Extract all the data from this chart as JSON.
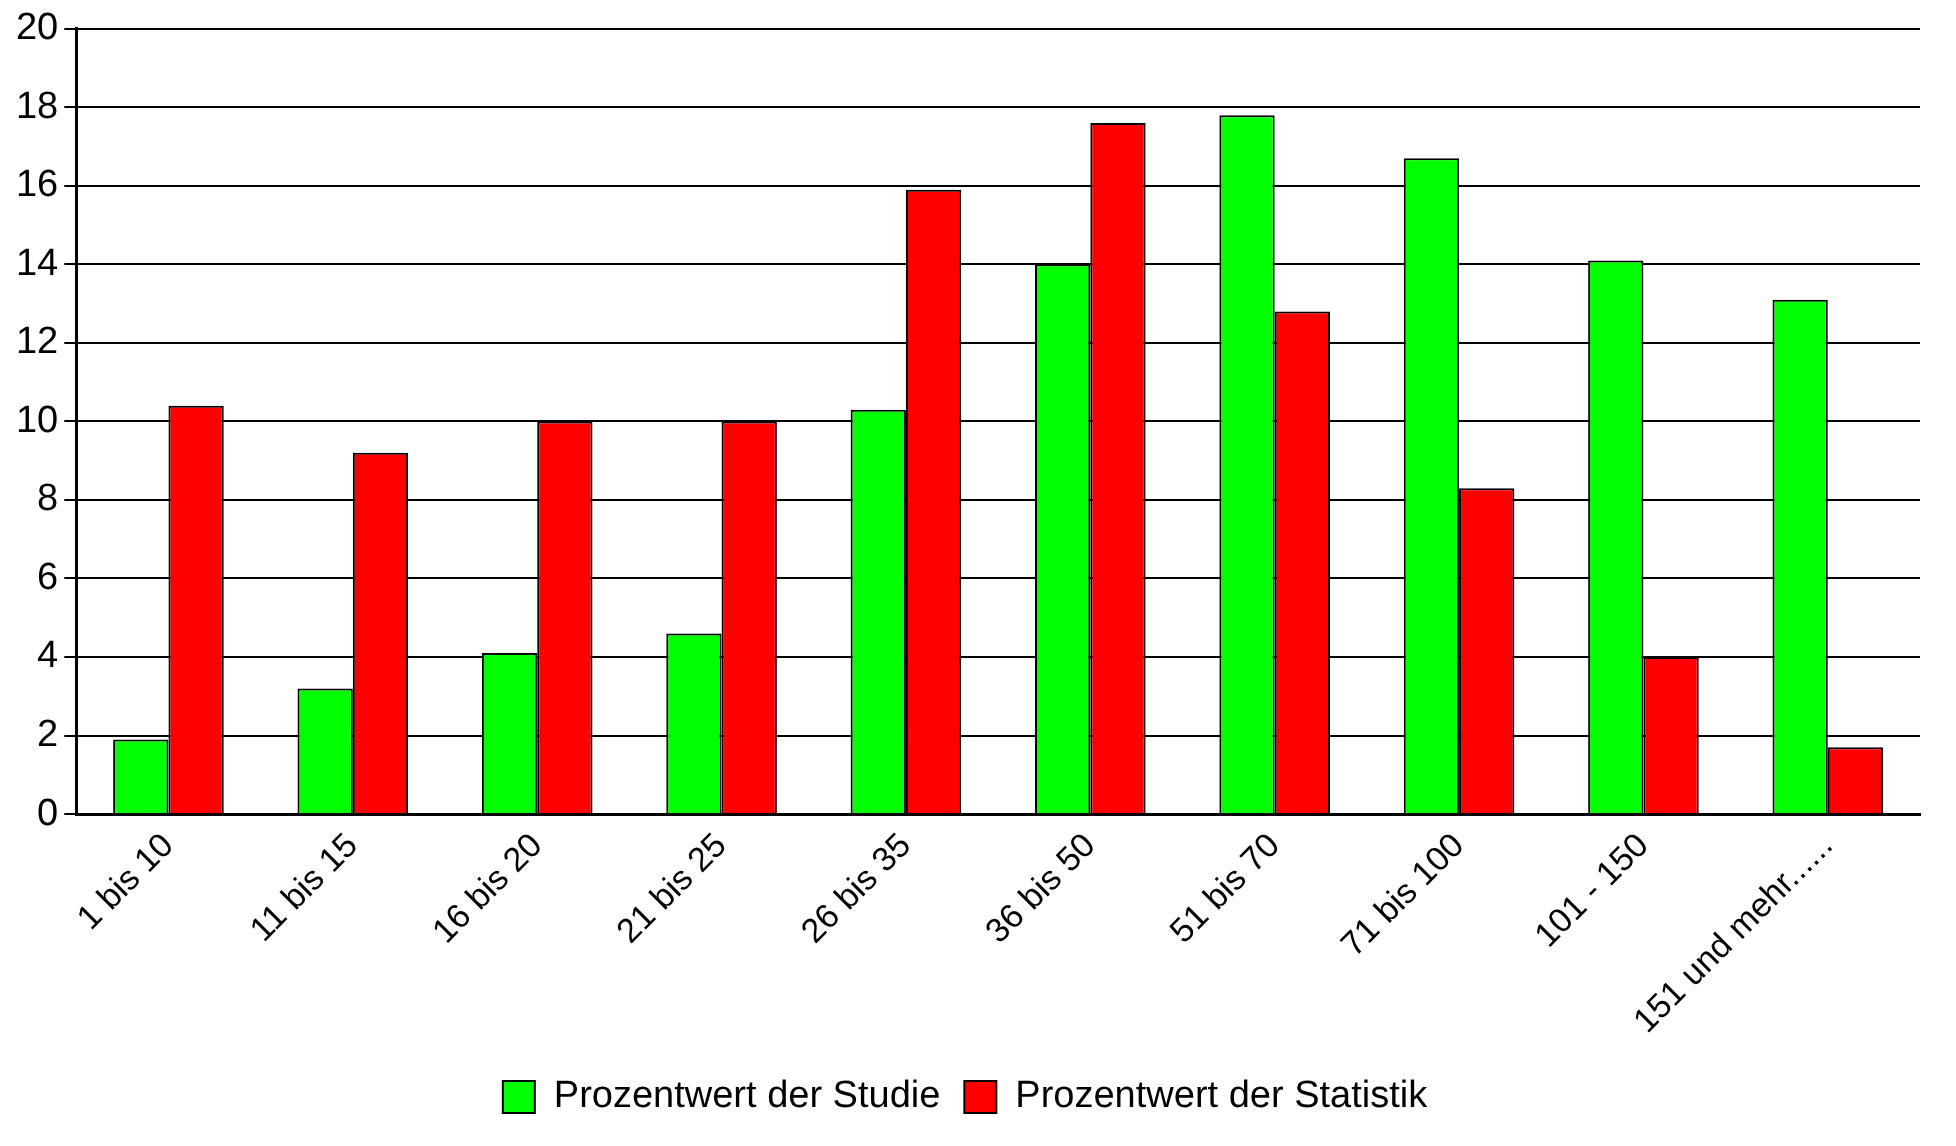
{
  "chart_data": {
    "type": "bar",
    "categories": [
      "1 bis 10",
      "11 bis 15",
      "16 bis 20",
      "21 bis 25",
      "26 bis 35",
      "36 bis 50",
      "51 bis 70",
      "71 bis 100",
      "101 - 150",
      "151 und mehr......"
    ],
    "series": [
      {
        "name": "Prozentwert der Studie",
        "color": "#00ff00",
        "values": [
          1.9,
          3.2,
          4.1,
          4.6,
          10.3,
          14.0,
          17.8,
          16.7,
          14.1,
          13.1
        ]
      },
      {
        "name": "Prozentwert der Statistik",
        "color": "#ff0000",
        "values": [
          10.4,
          9.2,
          10.0,
          10.0,
          15.9,
          17.6,
          12.8,
          8.3,
          4.0,
          1.7
        ]
      }
    ],
    "ylim": [
      0,
      20
    ],
    "yticks": [
      0,
      2,
      4,
      6,
      8,
      10,
      12,
      14,
      16,
      18,
      20
    ],
    "grid": "y",
    "legend": "bottom"
  }
}
